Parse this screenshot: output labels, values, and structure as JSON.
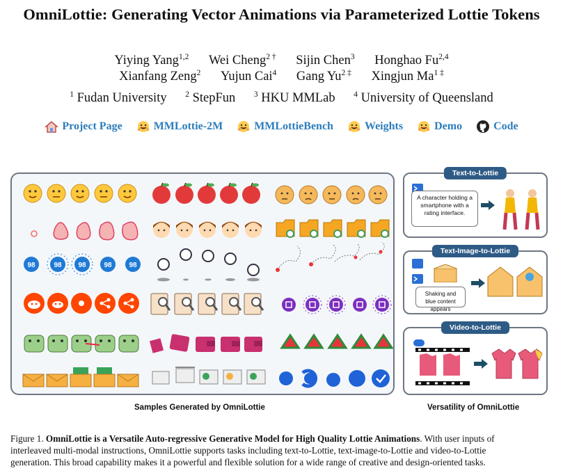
{
  "paper": {
    "title": "OmniLottie: Generating Vector Animations via Parameterized Lottie Tokens",
    "authors_row1": [
      {
        "name": "Yiying Yang",
        "sup": "1,2"
      },
      {
        "name": "Wei Cheng",
        "sup": "2 †"
      },
      {
        "name": "Sijin Chen",
        "sup": "3"
      },
      {
        "name": "Honghao Fu",
        "sup": "2,4"
      }
    ],
    "authors_row2": [
      {
        "name": "Xianfang Zeng",
        "sup": "2"
      },
      {
        "name": "Yujun Cai",
        "sup": "4"
      },
      {
        "name": "Gang Yu",
        "sup": "2 ‡"
      },
      {
        "name": "Xingjun Ma",
        "sup": "1 ‡"
      }
    ],
    "affiliations": [
      {
        "sup": "1",
        "name": "Fudan University"
      },
      {
        "sup": "2",
        "name": "StepFun"
      },
      {
        "sup": "3",
        "name": "HKU MMLab"
      },
      {
        "sup": "4",
        "name": "University of Queensland"
      }
    ],
    "links": [
      {
        "label": "Project Page",
        "icon": "house-icon"
      },
      {
        "label": "MMLottie-2M",
        "icon": "hugging-face-icon"
      },
      {
        "label": "MMLottieBench",
        "icon": "hugging-face-icon"
      },
      {
        "label": "Weights",
        "icon": "hugging-face-icon"
      },
      {
        "label": "Demo",
        "icon": "hugging-face-icon"
      },
      {
        "label": "Code",
        "icon": "github-icon"
      }
    ]
  },
  "figure": {
    "left_caption": "Samples Generated by OmniLottie",
    "right_caption": "Versatility of OmniLottie",
    "tasks": {
      "text_to_lottie": {
        "title": "Text-to-Lottie",
        "prompt": "A character holding a smartphone with a rating interface."
      },
      "text_image_to_lottie": {
        "title": "Text-Image-to-Lottie",
        "prompt": "Shaking and blue content appears"
      },
      "video_to_lottie": {
        "title": "Video-to-Lottie"
      }
    },
    "badge_number": "98",
    "colors": {
      "title_bar": "#2e5b86",
      "link": "#2d7dbb",
      "panel_border": "#6e7682"
    }
  },
  "caption": {
    "label": "Figure 1.",
    "bold": "OmniLottie  is a Versatile Auto-regressive Generative Model for High Quality Lottie Animations",
    "line1_rest": ". With user inputs of",
    "line2": "interleaved multi-modal instructions, OmniLottie supports tasks including text-to-Lottie, text-image-to-Lottie and video-to-Lottie",
    "line3": "generation. This broad capability makes it a powerful and flexible solution for a wide range of creative and design-oriented tasks."
  }
}
